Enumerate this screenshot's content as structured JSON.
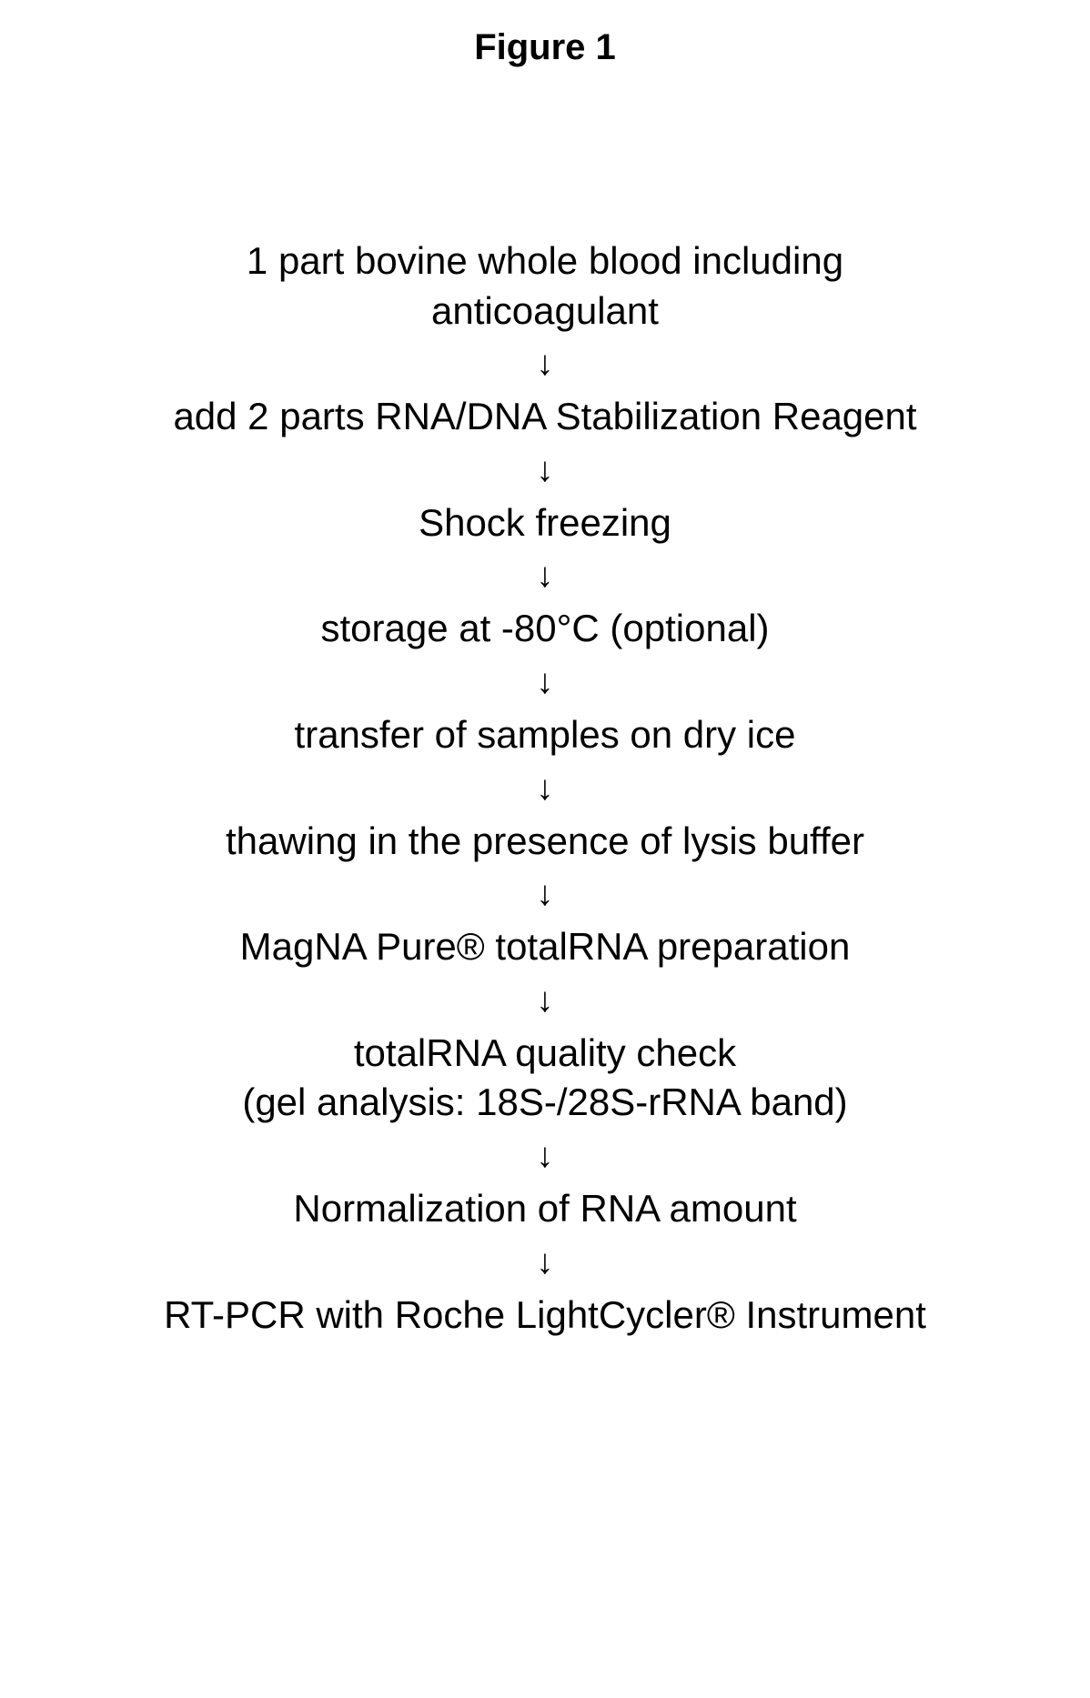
{
  "figure": {
    "title": "Figure 1",
    "title_fontsize": 40,
    "title_fontweight": "bold",
    "background_color": "#ffffff",
    "text_color": "#000000",
    "step_fontsize": 42,
    "step_fontweight": "normal",
    "font_family": "Arial, Helvetica, sans-serif",
    "arrow_glyph": "↓",
    "arrow_fontsize": 38,
    "arrow_fontweight": "bold",
    "step_gap": 12,
    "steps": [
      "1 part bovine whole blood including\nanticoagulant",
      "add 2 parts RNA/DNA Stabilization Reagent",
      "Shock freezing",
      "storage at -80°C (optional)",
      "transfer of samples on dry ice",
      "thawing in the presence of lysis buffer",
      "MagNA Pure® totalRNA preparation",
      "totalRNA quality check\n(gel analysis: 18S-/28S-rRNA band)",
      "Normalization of RNA amount",
      "RT-PCR with Roche LightCycler® Instrument"
    ]
  }
}
